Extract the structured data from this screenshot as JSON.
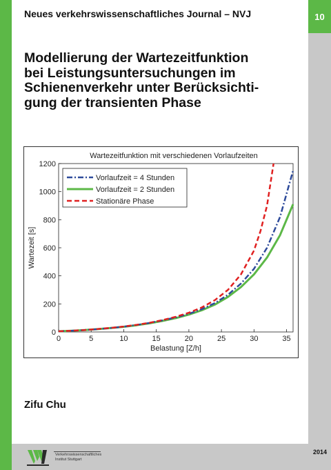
{
  "journal": {
    "title": "Neues verkehrswissenschaftliches Journal – NVJ",
    "volume": "10"
  },
  "book": {
    "title_lines": [
      "Modellierung der Wartezeitfunktion",
      "bei Leistungsuntersuchungen im",
      "Schienenverkehr unter Berücksichti-",
      "gung der transienten Phase"
    ],
    "author": "Zifu Chu",
    "year": "2014"
  },
  "publisher": {
    "lines": [
      "Verkehrswissenschaftliches",
      "Institut Stuttgart"
    ]
  },
  "colors": {
    "brand_green": "#5cb847",
    "side_gray": "#c8c8c8",
    "series_blue": "#2d4a9a",
    "series_green": "#5cb847",
    "series_red": "#e02020"
  },
  "chart_data": {
    "type": "line",
    "title": "Wartezeitfunktion mit verschiedenen Vorlaufzeiten",
    "xlabel": "Belastung [Z/h]",
    "ylabel": "Wartezeit [s]",
    "xlim": [
      0,
      36
    ],
    "ylim": [
      0,
      1200
    ],
    "xticks": [
      0,
      5,
      10,
      15,
      20,
      25,
      30,
      35
    ],
    "yticks": [
      0,
      200,
      400,
      600,
      800,
      1000,
      1200
    ],
    "legend_position": "top-left",
    "grid": false,
    "series": [
      {
        "name": "Vorlaufzeit = 4 Stunden",
        "style": "dash-dot",
        "color": "#2d4a9a",
        "x": [
          0,
          2,
          4,
          6,
          8,
          10,
          12,
          14,
          16,
          18,
          20,
          22,
          24,
          26,
          28,
          30,
          32,
          34,
          36
        ],
        "y": [
          5,
          9,
          14,
          20,
          28,
          38,
          50,
          65,
          83,
          104,
          130,
          163,
          206,
          265,
          345,
          450,
          600,
          820,
          1150
        ]
      },
      {
        "name": "Vorlaufzeit = 2 Stunden",
        "style": "solid",
        "color": "#5cb847",
        "x": [
          0,
          2,
          4,
          6,
          8,
          10,
          12,
          14,
          16,
          18,
          20,
          22,
          24,
          26,
          28,
          30,
          32,
          34,
          36
        ],
        "y": [
          5,
          9,
          14,
          20,
          28,
          37,
          48,
          62,
          79,
          99,
          124,
          155,
          195,
          250,
          320,
          410,
          530,
          690,
          910
        ]
      },
      {
        "name": "Stationäre Phase",
        "style": "dashed",
        "color": "#e02020",
        "x": [
          0,
          2,
          4,
          6,
          8,
          10,
          12,
          14,
          16,
          18,
          20,
          22,
          24,
          26,
          28,
          30,
          31,
          32,
          33
        ],
        "y": [
          5,
          9,
          14,
          21,
          29,
          39,
          51,
          66,
          85,
          108,
          137,
          175,
          227,
          300,
          410,
          580,
          720,
          900,
          1200
        ]
      }
    ]
  }
}
